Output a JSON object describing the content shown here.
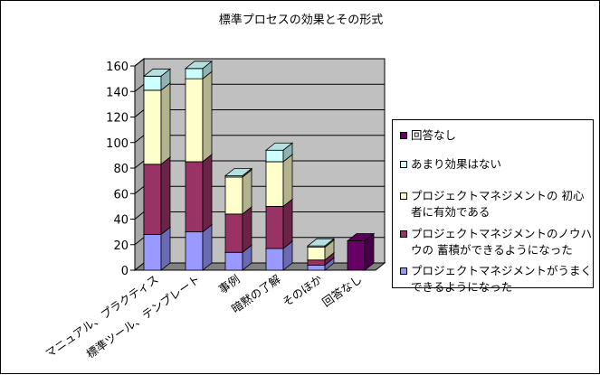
{
  "chart_data": {
    "type": "bar",
    "stacked": true,
    "three_d": true,
    "title": "標準プロセスの効果とその形式",
    "xlabel": "",
    "ylabel": "",
    "ylim": [
      0,
      160
    ],
    "yticks": [
      0,
      20,
      40,
      60,
      80,
      100,
      120,
      140,
      160
    ],
    "grid": true,
    "legend_position": "right",
    "categories": [
      "マニュアル、プラクティス",
      "標準ツール、テンプレート",
      "事例",
      "暗黙の了解",
      "そのほか",
      "回答なし"
    ],
    "series": [
      {
        "name": "プロジェクトマネジメントがうまくできるようになった",
        "color": "#9999ff",
        "values": [
          28,
          30,
          14,
          17,
          4,
          0
        ]
      },
      {
        "name": "プロジェクトマネジメントのノウハウの蓄積ができるようになった",
        "color": "#993366",
        "values": [
          55,
          55,
          30,
          33,
          4,
          0
        ]
      },
      {
        "name": "プロジェクトマネジメントの初心者に有効である",
        "color": "#ffffcc",
        "values": [
          58,
          65,
          29,
          35,
          10,
          0
        ]
      },
      {
        "name": "あまり効果はない",
        "color": "#ccffff",
        "values": [
          11,
          8,
          1,
          9,
          1,
          0
        ]
      },
      {
        "name": "回答なし",
        "color": "#660066",
        "values": [
          0,
          0,
          0,
          0,
          0,
          23
        ]
      }
    ],
    "legend_order": [
      4,
      3,
      2,
      1,
      0
    ],
    "legend_lines": [
      [
        "回答なし"
      ],
      [
        "あまり効果はない"
      ],
      [
        "プロジェクトマネジメントの 初心",
        "者に有効である"
      ],
      [
        "プロジェクトマネジメントのノウハ",
        "ウの 蓄積ができるようになった"
      ],
      [
        "プロジェクトマネジメントがうまく",
        "できるようになった"
      ]
    ],
    "wall_color": "#c0c0c0",
    "plot_background": "#ffffff"
  }
}
